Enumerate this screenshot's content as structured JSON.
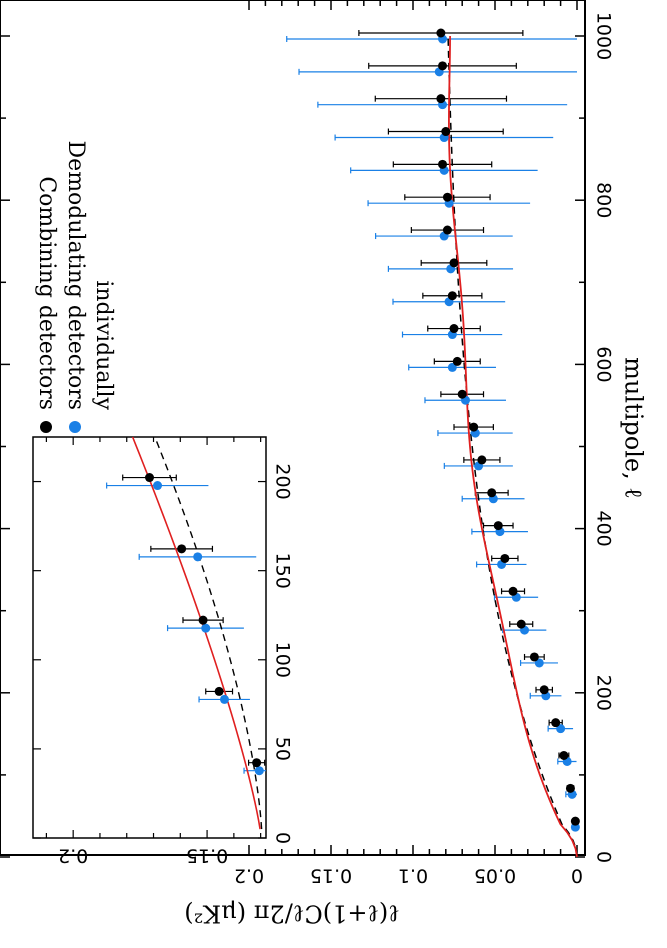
{
  "chart_data": [
    {
      "type": "scatter",
      "xlabel": "multipole, ℓ",
      "ylabel": "ℓ(ℓ+1)Cℓ/2π (μK²)",
      "xlim": [
        0,
        1000
      ],
      "ylim": [
        0,
        0.25
      ],
      "x_ticks": [
        "0",
        "200",
        "400",
        "600",
        "800",
        "1000"
      ],
      "y_ticks": [
        "0",
        "0.05",
        "0.1",
        "0.15",
        "0.2"
      ],
      "legend": {
        "position": "top-left",
        "entries": [
          {
            "label": "Combining detectors",
            "color": "#000000"
          },
          {
            "label": "Demodulating detectors",
            "color": "#1a80e6"
          },
          {
            "label": "individually",
            "color": "#000000"
          }
        ]
      },
      "series": [
        {
          "name": "Combining detectors",
          "color": "#000000",
          "x": [
            40,
            80,
            120,
            160,
            200,
            240,
            280,
            320,
            360,
            400,
            440,
            480,
            520,
            560,
            600,
            640,
            680,
            720,
            760,
            800,
            840,
            880,
            920,
            960,
            1000
          ],
          "y": [
            0.001,
            0.004,
            0.008,
            0.013,
            0.02,
            0.026,
            0.034,
            0.039,
            0.044,
            0.048,
            0.052,
            0.058,
            0.063,
            0.07,
            0.073,
            0.075,
            0.076,
            0.075,
            0.079,
            0.079,
            0.082,
            0.08,
            0.083,
            0.082,
            0.083
          ],
          "err": [
            0.001,
            0.002,
            0.003,
            0.004,
            0.005,
            0.006,
            0.007,
            0.007,
            0.008,
            0.009,
            0.01,
            0.011,
            0.012,
            0.013,
            0.014,
            0.016,
            0.018,
            0.02,
            0.022,
            0.026,
            0.03,
            0.035,
            0.04,
            0.045,
            0.05
          ]
        },
        {
          "name": "Demodulating detectors individually",
          "color": "#1a80e6",
          "x": [
            40,
            80,
            120,
            160,
            200,
            240,
            280,
            320,
            360,
            400,
            440,
            480,
            520,
            560,
            600,
            640,
            680,
            720,
            760,
            800,
            840,
            880,
            920,
            960,
            1000
          ],
          "y": [
            0.001,
            0.003,
            0.006,
            0.01,
            0.019,
            0.023,
            0.032,
            0.037,
            0.046,
            0.047,
            0.051,
            0.06,
            0.062,
            0.068,
            0.076,
            0.076,
            0.078,
            0.077,
            0.081,
            0.078,
            0.081,
            0.081,
            0.082,
            0.084,
            0.082
          ]
        }
      ]
    },
    {
      "type": "scatter",
      "xlim": [
        0,
        225
      ],
      "ylim": [
        0.128,
        0.215
      ],
      "x_ticks": [
        "0",
        "50",
        "100",
        "150",
        "200"
      ],
      "y_ticks": [
        "0.15",
        "0.2"
      ],
      "series": [
        {
          "name": "Combining detectors",
          "color": "#000000",
          "x": [
            40,
            80,
            120,
            160,
            200
          ],
          "y": [
            0.1315,
            0.1455,
            0.1515,
            0.1595,
            0.1715
          ]
        },
        {
          "name": "Demodulating detectors individually",
          "color": "#1a80e6",
          "x": [
            40,
            80,
            120,
            160,
            200
          ],
          "y": [
            0.1305,
            0.1435,
            0.1505,
            0.1535,
            0.1685
          ]
        }
      ]
    }
  ]
}
